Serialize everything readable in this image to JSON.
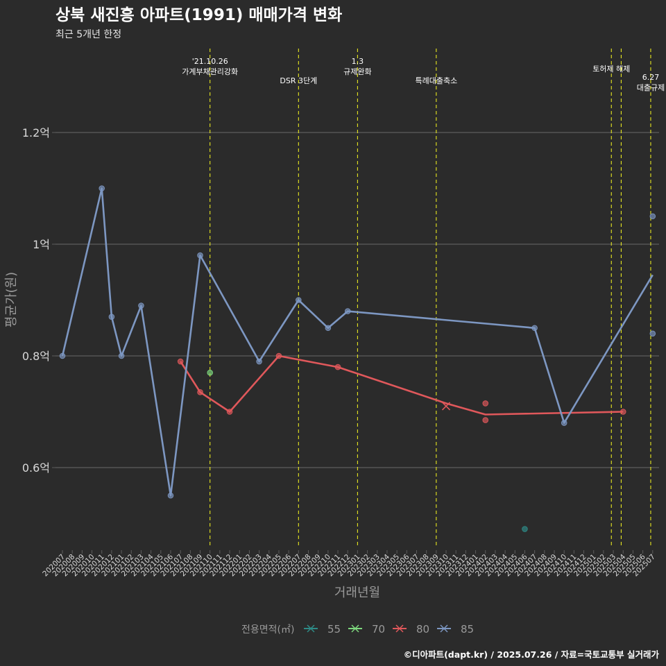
{
  "colors": {
    "background": "#2b2b2b",
    "grid": "#5c5c5c",
    "event_line": "#e8e820",
    "series_55": "#2e8b87",
    "series_70": "#7ed97e",
    "series_80": "#e0585b",
    "series_85": "#7d97c2",
    "title": "#ffffff",
    "subtitle": "#e6e6e6",
    "axis_title": "#9a9a9a",
    "tick": "#d9d9d9"
  },
  "chart_data": {
    "type": "line",
    "title": "상북 새진흥 아파트(1991) 매매가격 변화",
    "subtitle": "최근 5개년 한정",
    "xlabel": "거래년월",
    "ylabel": "평균가(원)",
    "caption": "©디아파트(dapt.kr) / 2025.07.26 / 자료=국토교통부 실거래가",
    "legend_title": "전용면적(㎡)",
    "legend_position": "bottom",
    "grid": true,
    "ylim": [
      0.45,
      1.35
    ],
    "y_ticks": [
      {
        "value": 0.6,
        "label": "0.6억"
      },
      {
        "value": 0.8,
        "label": "0.8억"
      },
      {
        "value": 1.0,
        "label": "1억"
      },
      {
        "value": 1.2,
        "label": "1.2억"
      }
    ],
    "categories": [
      "202007",
      "202008",
      "202009",
      "202010",
      "202011",
      "202012",
      "202101",
      "202102",
      "202103",
      "202104",
      "202105",
      "202106",
      "202107",
      "202108",
      "202109",
      "202110",
      "202111",
      "202112",
      "202201",
      "202202",
      "202203",
      "202204",
      "202205",
      "202206",
      "202207",
      "202208",
      "202209",
      "202210",
      "202211",
      "202212",
      "202301",
      "202302",
      "202303",
      "202304",
      "202305",
      "202306",
      "202307",
      "202308",
      "202309",
      "202310",
      "202311",
      "202312",
      "202401",
      "202402",
      "202403",
      "202404",
      "202405",
      "202406",
      "202407",
      "202408",
      "202409",
      "202410",
      "202411",
      "202412",
      "202501",
      "202502",
      "202503",
      "202504",
      "202505",
      "202506",
      "202507"
    ],
    "events": [
      {
        "x": 15,
        "label": "'21.10.26\n가계부채관리강화"
      },
      {
        "x": 24,
        "label": "DSR 3단계"
      },
      {
        "x": 30,
        "label": "1.3\n규제완화"
      },
      {
        "x": 38,
        "label": "특례대출축소"
      },
      {
        "x": 55.8,
        "label": "토허제 해제"
      },
      {
        "x": 56.8,
        "label": ""
      },
      {
        "x": 59.8,
        "label": "6.27\n대출규제"
      }
    ],
    "series": [
      {
        "name": "55",
        "color_key": "series_55",
        "line": [],
        "points": [
          [
            47,
            0.49
          ]
        ],
        "cross_points": []
      },
      {
        "name": "70",
        "color_key": "series_70",
        "line": [],
        "points": [
          [
            15,
            0.77
          ]
        ],
        "cross_points": []
      },
      {
        "name": "80",
        "color_key": "series_80",
        "line": [
          [
            12,
            0.79
          ],
          [
            14,
            0.735
          ],
          [
            17,
            0.7
          ],
          [
            22,
            0.8
          ],
          [
            28,
            0.78
          ],
          [
            39,
            0.715
          ],
          [
            43,
            0.695
          ],
          [
            57,
            0.7
          ]
        ],
        "points": [
          [
            12,
            0.79
          ],
          [
            14,
            0.735
          ],
          [
            17,
            0.7
          ],
          [
            22,
            0.8
          ],
          [
            28,
            0.78
          ],
          [
            43,
            0.715
          ],
          [
            43,
            0.685
          ],
          [
            57,
            0.7
          ]
        ],
        "cross_points": [
          [
            39,
            0.71
          ]
        ]
      },
      {
        "name": "85",
        "color_key": "series_85",
        "line": [
          [
            0,
            0.8
          ],
          [
            4,
            1.1
          ],
          [
            5,
            0.87
          ],
          [
            6,
            0.8
          ],
          [
            8,
            0.89
          ],
          [
            11,
            0.55
          ],
          [
            14,
            0.98
          ],
          [
            20,
            0.79
          ],
          [
            24,
            0.9
          ],
          [
            27,
            0.85
          ],
          [
            29,
            0.88
          ],
          [
            48,
            0.85
          ],
          [
            51,
            0.68
          ],
          [
            60,
            0.945
          ]
        ],
        "points": [
          [
            0,
            0.8
          ],
          [
            4,
            1.1
          ],
          [
            5,
            0.87
          ],
          [
            6,
            0.8
          ],
          [
            8,
            0.89
          ],
          [
            11,
            0.55
          ],
          [
            14,
            0.98
          ],
          [
            20,
            0.79
          ],
          [
            24,
            0.9
          ],
          [
            27,
            0.85
          ],
          [
            29,
            0.88
          ],
          [
            48,
            0.85
          ],
          [
            51,
            0.68
          ],
          [
            60,
            1.05
          ],
          [
            60,
            0.84
          ]
        ],
        "cross_points": []
      }
    ]
  }
}
